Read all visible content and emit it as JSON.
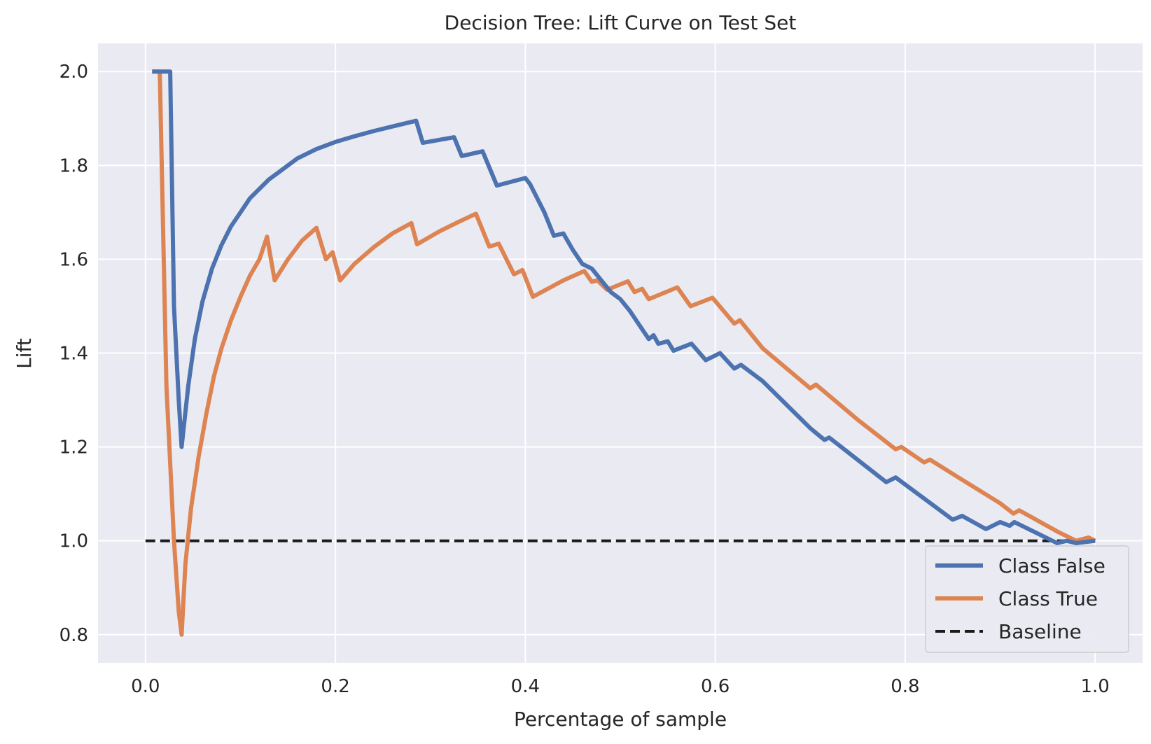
{
  "chart_data": {
    "type": "line",
    "title": "Decision Tree: Lift Curve on Test Set",
    "xlabel": "Percentage of sample",
    "ylabel": "Lift",
    "xlim": [
      -0.05,
      1.05
    ],
    "ylim": [
      0.74,
      2.06
    ],
    "xticks": [
      0.0,
      0.2,
      0.4,
      0.6,
      0.8,
      1.0
    ],
    "xtick_labels": [
      "0.0",
      "0.2",
      "0.4",
      "0.6",
      "0.8",
      "1.0"
    ],
    "yticks": [
      0.8,
      1.0,
      1.2,
      1.4,
      1.6,
      1.8,
      2.0
    ],
    "ytick_labels": [
      "0.8",
      "1.0",
      "1.2",
      "1.4",
      "1.6",
      "1.8",
      "2.0"
    ],
    "grid": true,
    "legend_position": "lower-right",
    "series": [
      {
        "name": "Class False",
        "color": "#4c72b0",
        "style": "solid",
        "x": [
          0.007,
          0.01,
          0.015,
          0.02,
          0.022,
          0.026,
          0.03,
          0.035,
          0.038,
          0.045,
          0.052,
          0.06,
          0.07,
          0.08,
          0.09,
          0.1,
          0.11,
          0.12,
          0.13,
          0.14,
          0.15,
          0.16,
          0.18,
          0.2,
          0.22,
          0.24,
          0.26,
          0.285,
          0.292,
          0.325,
          0.333,
          0.355,
          0.37,
          0.4,
          0.405,
          0.42,
          0.43,
          0.44,
          0.45,
          0.46,
          0.47,
          0.48,
          0.49,
          0.5,
          0.51,
          0.52,
          0.53,
          0.535,
          0.54,
          0.55,
          0.556,
          0.562,
          0.575,
          0.59,
          0.605,
          0.62,
          0.627,
          0.65,
          0.7,
          0.715,
          0.72,
          0.78,
          0.79,
          0.85,
          0.86,
          0.885,
          0.9,
          0.91,
          0.915,
          0.93,
          0.95,
          0.96,
          0.97,
          0.98,
          1.0
        ],
        "y": [
          2.0,
          2.0,
          2.0,
          2.0,
          2.0,
          2.0,
          1.5,
          1.3,
          1.2,
          1.33,
          1.43,
          1.51,
          1.58,
          1.63,
          1.67,
          1.7,
          1.73,
          1.75,
          1.77,
          1.785,
          1.8,
          1.815,
          1.835,
          1.85,
          1.862,
          1.873,
          1.883,
          1.895,
          1.848,
          1.86,
          1.82,
          1.83,
          1.757,
          1.773,
          1.76,
          1.7,
          1.65,
          1.655,
          1.62,
          1.59,
          1.58,
          1.555,
          1.53,
          1.515,
          1.49,
          1.46,
          1.43,
          1.438,
          1.42,
          1.425,
          1.405,
          1.41,
          1.42,
          1.385,
          1.4,
          1.367,
          1.375,
          1.34,
          1.24,
          1.215,
          1.22,
          1.125,
          1.135,
          1.045,
          1.053,
          1.025,
          1.04,
          1.032,
          1.04,
          1.025,
          1.005,
          0.995,
          1.0,
          0.995,
          1.0
        ]
      },
      {
        "name": "Class True",
        "color": "#dd8452",
        "style": "solid",
        "x": [
          0.007,
          0.015,
          0.022,
          0.03,
          0.035,
          0.038,
          0.042,
          0.048,
          0.056,
          0.064,
          0.072,
          0.08,
          0.09,
          0.1,
          0.11,
          0.12,
          0.128,
          0.136,
          0.15,
          0.165,
          0.18,
          0.19,
          0.197,
          0.205,
          0.22,
          0.24,
          0.26,
          0.28,
          0.286,
          0.31,
          0.33,
          0.348,
          0.362,
          0.372,
          0.388,
          0.397,
          0.408,
          0.44,
          0.462,
          0.47,
          0.476,
          0.486,
          0.508,
          0.515,
          0.523,
          0.53,
          0.56,
          0.574,
          0.597,
          0.62,
          0.626,
          0.65,
          0.7,
          0.706,
          0.75,
          0.79,
          0.796,
          0.82,
          0.826,
          0.86,
          0.9,
          0.914,
          0.92,
          0.96,
          0.98,
          0.993,
          1.0
        ],
        "y": [
          2.0,
          2.0,
          1.33,
          1.0,
          0.85,
          0.8,
          0.95,
          1.07,
          1.18,
          1.27,
          1.35,
          1.41,
          1.47,
          1.52,
          1.565,
          1.6,
          1.648,
          1.555,
          1.6,
          1.64,
          1.667,
          1.6,
          1.615,
          1.555,
          1.59,
          1.625,
          1.655,
          1.677,
          1.632,
          1.66,
          1.68,
          1.697,
          1.627,
          1.633,
          1.568,
          1.577,
          1.52,
          1.555,
          1.575,
          1.552,
          1.555,
          1.535,
          1.553,
          1.53,
          1.537,
          1.515,
          1.54,
          1.5,
          1.518,
          1.463,
          1.47,
          1.41,
          1.325,
          1.333,
          1.258,
          1.195,
          1.2,
          1.167,
          1.173,
          1.13,
          1.08,
          1.058,
          1.065,
          1.02,
          1.0,
          1.007,
          1.0
        ]
      },
      {
        "name": "Baseline",
        "color": "#1a1a1a",
        "style": "dashed",
        "x": [
          0.0,
          1.0
        ],
        "y": [
          1.0,
          1.0
        ]
      }
    ]
  }
}
